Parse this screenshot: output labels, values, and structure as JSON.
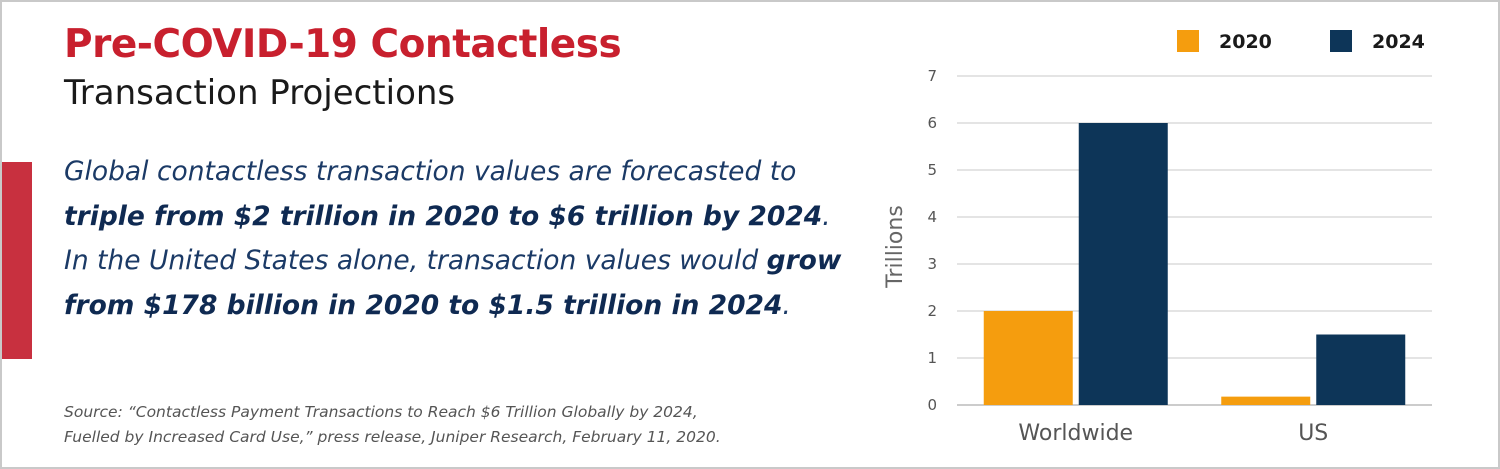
{
  "heading": {
    "title": "Pre-COVID-19 Contactless",
    "subtitle": "Transaction Projections"
  },
  "body": {
    "p1": "Global contactless transaction values are forecasted to ",
    "p2": "triple from $2 trillion in 2020 to $6 trillion by 2024",
    "p3": ". In the United States alone, transaction values would ",
    "p4": "grow from $178 billion in 2020 to $1.5 trillion in 2024",
    "p5": "."
  },
  "source": {
    "line1": "Source: “Contactless Payment Transactions to Reach $6 Trillion Globally by 2024,",
    "line2": "Fuelled by Increased Card Use,” press release, Juniper Research, February 11, 2020."
  },
  "colors": {
    "accent": "#c8303f",
    "series_2020": "#f59d0e",
    "series_2024": "#0d3558"
  },
  "chart_data": {
    "type": "bar",
    "categories": [
      "Worldwide",
      "US"
    ],
    "series": [
      {
        "name": "2020",
        "values": [
          2,
          0.178
        ],
        "color": "#f59d0e"
      },
      {
        "name": "2024",
        "values": [
          6,
          1.5
        ],
        "color": "#0d3558"
      }
    ],
    "ylabel": "Trillions",
    "xlabel": "",
    "ylim": [
      0,
      7
    ],
    "yticks": [
      0,
      1,
      2,
      3,
      4,
      5,
      6,
      7
    ],
    "grid": true,
    "legend": "top-right"
  }
}
